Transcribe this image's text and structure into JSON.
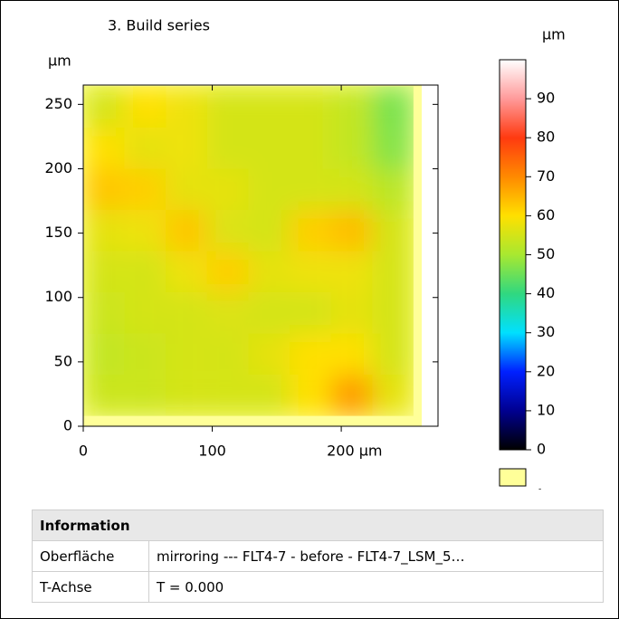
{
  "chart_data": {
    "type": "heatmap",
    "title": "3. Build series",
    "y_unit": "µm",
    "z_unit": "µm",
    "x": [
      16,
      48,
      80,
      112,
      144,
      176,
      208,
      240
    ],
    "y": [
      248,
      216,
      184,
      152,
      120,
      88,
      56,
      24
    ],
    "z": [
      [
        55,
        60,
        58,
        55,
        55,
        55,
        53,
        46
      ],
      [
        60,
        57,
        58,
        55,
        55,
        55,
        53,
        47
      ],
      [
        63,
        62,
        57,
        57,
        55,
        55,
        55,
        52
      ],
      [
        57,
        58,
        63,
        56,
        55,
        62,
        64,
        55
      ],
      [
        55,
        55,
        58,
        62,
        57,
        58,
        58,
        55
      ],
      [
        54,
        55,
        55,
        56,
        55,
        55,
        57,
        55
      ],
      [
        53,
        54,
        55,
        55,
        57,
        60,
        60,
        55
      ],
      [
        54,
        54,
        55,
        55,
        55,
        60,
        68,
        57
      ]
    ],
    "xlim": [
      0,
      275
    ],
    "xticks": [
      0,
      100,
      {
        "value": 200,
        "label": "200 µm"
      }
    ],
    "ylim": [
      0,
      265
    ],
    "yticks": [
      0,
      50,
      100,
      150,
      200,
      250
    ],
    "zlim": [
      0,
      100
    ],
    "zticks": [
      0,
      10,
      20,
      30,
      40,
      50,
      60,
      70,
      80,
      90
    ],
    "colorscale": [
      [
        0,
        "#000000"
      ],
      [
        10,
        "#000090"
      ],
      [
        20,
        "#0020ff"
      ],
      [
        30,
        "#00e0ff"
      ],
      [
        40,
        "#30d880"
      ],
      [
        50,
        "#a8e830"
      ],
      [
        60,
        "#ffe000"
      ],
      [
        70,
        "#ff8a00"
      ],
      [
        80,
        "#ff3a10"
      ],
      [
        90,
        "#ff9a9a"
      ],
      [
        100,
        "#ffffff"
      ]
    ],
    "nodata_color": "#ffff99",
    "nodata_label": "-"
  },
  "info_table": {
    "title": "Information",
    "rows": [
      [
        "Oberfläche",
        "mirroring --- FLT4-7 - before - FLT4-7_LSM_5…"
      ],
      [
        "T-Achse",
        "T = 0.000"
      ]
    ]
  }
}
